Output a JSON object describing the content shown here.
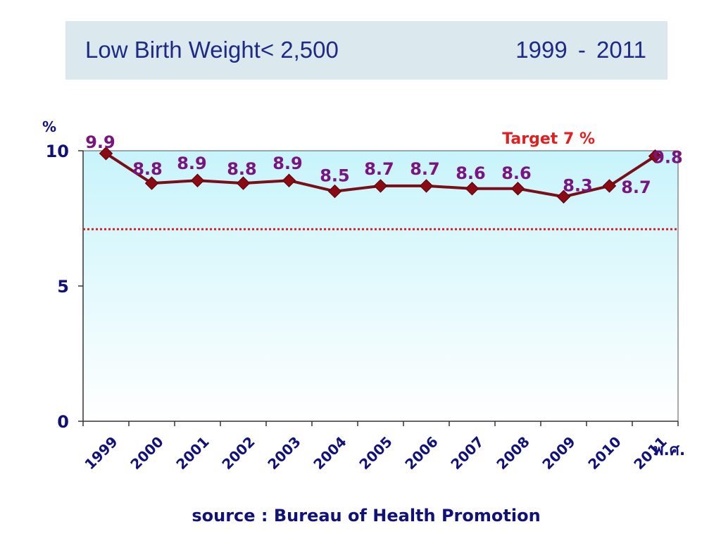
{
  "header": {
    "title": "Low Birth Weight< 2,500",
    "years": "1999 - 2011"
  },
  "footer": {
    "source": "source :  Bureau of Health Promotion"
  },
  "colors": {
    "title_bg": "#dbe9ee",
    "title_text": "#1f2a86",
    "line": "#7a0f1a",
    "marker": "#8b0a14",
    "data_labels": "#7a1480",
    "target_line": "#e02020",
    "axis_text": "#11117a",
    "plot_bg_top": "#c8f4fb",
    "plot_bg_bottom": "#ffffff"
  },
  "chart_data": {
    "type": "line",
    "title": "Low Birth Weight< 2,500",
    "ylabel": "%",
    "xlabel": "พ.ศ.",
    "categories": [
      "1999",
      "2000",
      "2001",
      "2002",
      "2003",
      "2004",
      "2005",
      "2006",
      "2007",
      "2008",
      "2009",
      "2010",
      "2011"
    ],
    "series": [
      {
        "values": [
          9.9,
          8.8,
          8.9,
          8.8,
          8.9,
          8.5,
          8.7,
          8.7,
          8.6,
          8.6,
          8.3,
          8.7,
          9.8
        ]
      }
    ],
    "ylim": [
      0,
      10
    ],
    "yticks": [
      "0",
      "5",
      "10"
    ],
    "target": {
      "label": "Target 7 %",
      "value": 7.1
    },
    "grid": false,
    "legend": "none"
  }
}
